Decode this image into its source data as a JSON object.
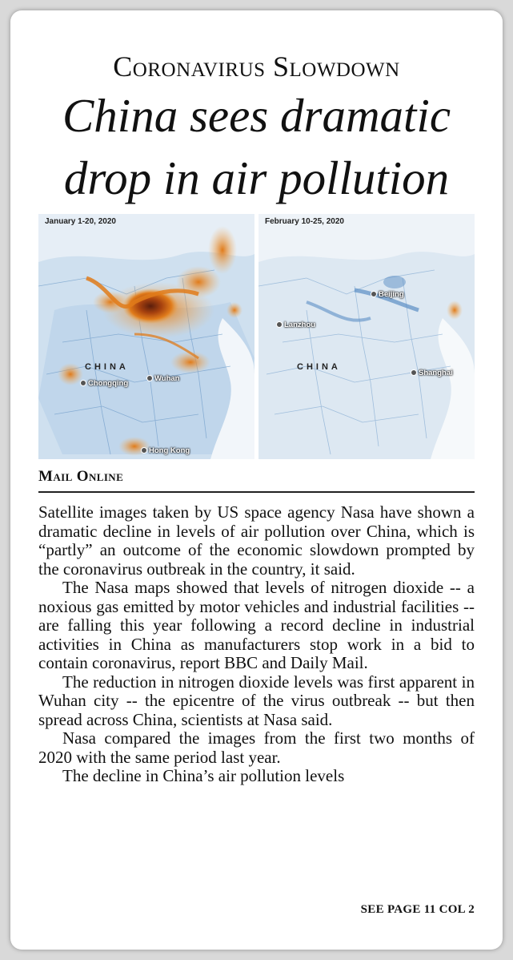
{
  "article": {
    "kicker": "Coronavirus Slowdown",
    "headline_line1": "China sees dramatic",
    "headline_line2": "drop in air pollution",
    "source": "Mail Online",
    "paragraphs": [
      "Satellite images taken by US space agency Nasa have shown a dramatic decline in levels of air pollution over China, which is “partly” an outcome of the economic slowdown prompted by the coronavirus outbreak in the country, it said.",
      "The Nasa maps showed that levels of nitrogen dioxide -- a noxious gas emitted by motor vehicles and industrial facilities -- are falling this year following a record decline in industrial activities in China as manufacturers stop work in a bid to contain coronavirus, report BBC and Daily Mail.",
      "The reduction in nitrogen dioxide levels was first apparent in Wuhan city -- the epicentre of the virus outbreak -- but then spread across China, scientists at Nasa said.",
      "Nasa compared the images from the first two months of 2020 with the same period last year.",
      "The decline in China’s air pollution levels"
    ],
    "jump": "SEE PAGE 11 COL 2"
  },
  "maps": {
    "left": {
      "date": "January 1-20, 2020",
      "country": "CHINA",
      "cities": [
        "Chongqing",
        "Wuhan",
        "Hong Kong"
      ]
    },
    "right": {
      "date": "February 10-25, 2020",
      "country": "CHINA",
      "cities": [
        "Beijing",
        "Lanzhou",
        "Shanghai"
      ]
    }
  },
  "colors": {
    "pollution_high": "#e07b1a",
    "pollution_peak": "#5a1e0c",
    "pollution_low": "#5b8ec4"
  }
}
